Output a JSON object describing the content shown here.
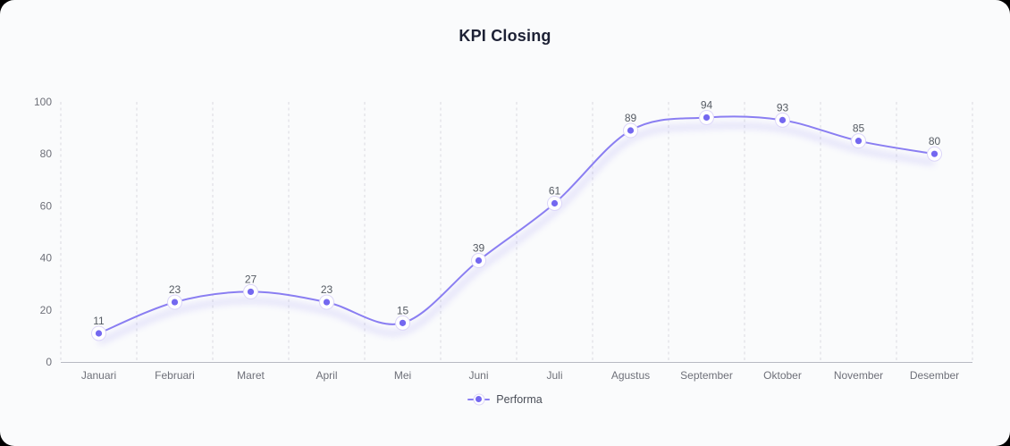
{
  "title": "KPI Closing",
  "legend": {
    "items": [
      {
        "label": "Performa"
      }
    ]
  },
  "colors": {
    "card_background": "#fafbfc",
    "title": "#1d2135",
    "axis_label": "#6e7079",
    "value_label": "#555b63",
    "legend_label": "#4a4e58",
    "line": "#8a7ef2",
    "point": "#7468f0",
    "point_halo_border": "#dcd6f9",
    "point_halo_fill": "#ffffff",
    "grid_line": "#d9dae0",
    "axis_line": "#b7bac2",
    "line_shadow": "#7468f0"
  },
  "chart_data": {
    "type": "line",
    "title": "KPI Closing",
    "categories": [
      "Januari",
      "Februari",
      "Maret",
      "April",
      "Mei",
      "Juni",
      "Juli",
      "Agustus",
      "September",
      "Oktober",
      "November",
      "Desember"
    ],
    "series": [
      {
        "name": "Performa",
        "values": [
          11,
          23,
          27,
          23,
          15,
          39,
          61,
          89,
          94,
          93,
          85,
          80
        ]
      }
    ],
    "xlabel": "",
    "ylabel": "",
    "ylim": [
      0,
      100
    ],
    "y_ticks": [
      0,
      20,
      40,
      60,
      80,
      100
    ],
    "grid": "vertical-dashed",
    "smooth": true,
    "point_labels_visible": true,
    "legend_position": "bottom"
  }
}
